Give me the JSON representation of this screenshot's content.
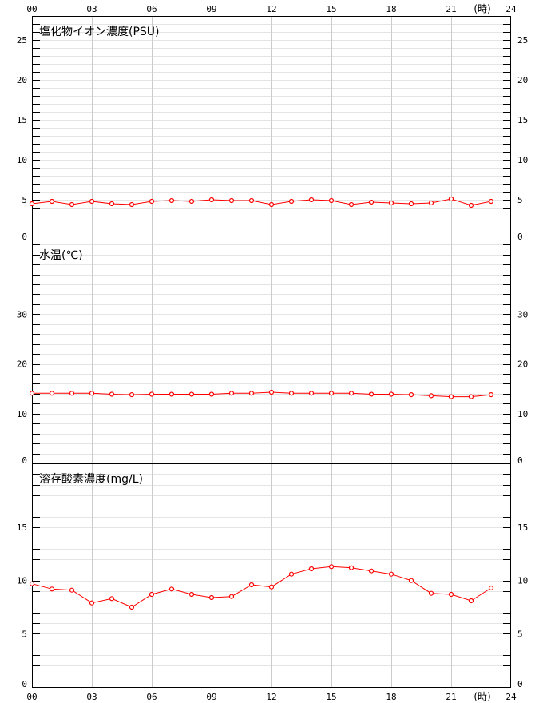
{
  "colors": {
    "series": "#ff0000",
    "grid_major": "#cccccc",
    "grid_minor": "#e4e4e4",
    "axis": "#000000"
  },
  "x_axis": {
    "ticks": [
      "00",
      "03",
      "06",
      "09",
      "12",
      "15",
      "18",
      "21",
      "24"
    ],
    "unit": "(時)"
  },
  "chart_data": [
    {
      "type": "line",
      "title": "塩化物イオン濃度(PSU)",
      "xlim": [
        0,
        24
      ],
      "ylim": [
        0,
        28
      ],
      "y_ticks": [
        0,
        5,
        10,
        15,
        20,
        25
      ],
      "grid": true,
      "x": [
        0,
        1,
        2,
        3,
        4,
        5,
        6,
        7,
        8,
        9,
        10,
        11,
        12,
        13,
        14,
        15,
        16,
        17,
        18,
        19,
        20,
        21,
        22,
        23
      ],
      "series": [
        {
          "values": [
            4.5,
            4.8,
            4.4,
            4.8,
            4.5,
            4.4,
            4.8,
            4.9,
            4.8,
            5.0,
            4.9,
            4.9,
            4.4,
            4.8,
            5.0,
            4.9,
            4.4,
            4.7,
            4.6,
            4.5,
            4.6,
            5.1,
            4.3,
            4.8
          ]
        }
      ]
    },
    {
      "type": "line",
      "title": "水温(℃)",
      "xlim": [
        0,
        24
      ],
      "ylim": [
        0,
        45
      ],
      "y_ticks": [
        0,
        10,
        20,
        30
      ],
      "grid": true,
      "x": [
        0,
        1,
        2,
        3,
        4,
        5,
        6,
        7,
        8,
        9,
        10,
        11,
        12,
        13,
        14,
        15,
        16,
        17,
        18,
        19,
        20,
        21,
        22,
        23
      ],
      "series": [
        {
          "values": [
            14.1,
            14.1,
            14.1,
            14.1,
            13.9,
            13.8,
            13.9,
            13.9,
            13.9,
            13.9,
            14.1,
            14.1,
            14.3,
            14.1,
            14.1,
            14.1,
            14.1,
            13.9,
            13.9,
            13.8,
            13.6,
            13.4,
            13.4,
            13.8
          ]
        }
      ]
    },
    {
      "type": "line",
      "title": "溶存酸素濃度(mg/L)",
      "xlim": [
        0,
        24
      ],
      "ylim": [
        0,
        21
      ],
      "y_ticks": [
        0,
        5,
        10,
        15
      ],
      "grid": true,
      "x": [
        0,
        1,
        2,
        3,
        4,
        5,
        6,
        7,
        8,
        9,
        10,
        11,
        12,
        13,
        14,
        15,
        16,
        17,
        18,
        19,
        20,
        21,
        22,
        23
      ],
      "series": [
        {
          "values": [
            9.7,
            9.2,
            9.1,
            7.9,
            8.3,
            7.5,
            8.7,
            9.2,
            8.7,
            8.4,
            8.5,
            9.6,
            9.4,
            10.6,
            11.1,
            11.3,
            11.2,
            10.9,
            10.6,
            10.0,
            8.8,
            8.7,
            8.1,
            9.3
          ]
        }
      ]
    }
  ]
}
